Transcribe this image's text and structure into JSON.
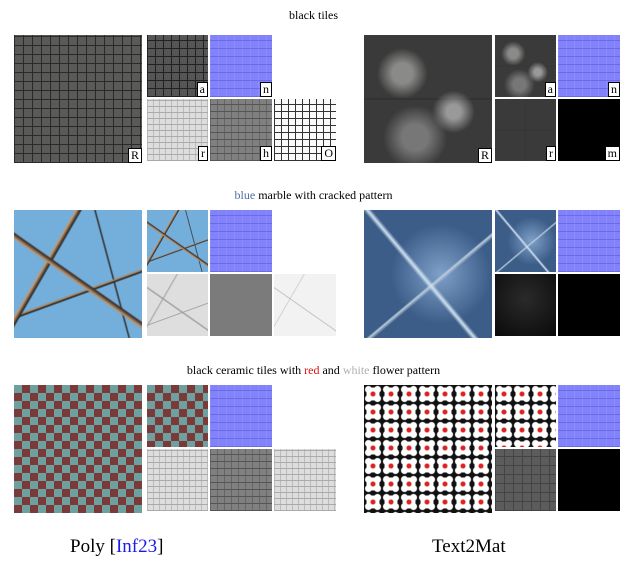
{
  "rows": [
    {
      "caption": [
        {
          "text": "black tiles"
        }
      ],
      "poly_labels": [
        "a",
        "n",
        "r",
        "h",
        "O"
      ],
      "poly_main_label": "R",
      "text2mat_labels": [
        "a",
        "n",
        "r",
        "m"
      ],
      "text2mat_main_label": "R"
    },
    {
      "caption": [
        {
          "text": "blue",
          "color": "#4a6fa5"
        },
        {
          "text": " marble with cracked pattern"
        }
      ]
    },
    {
      "caption": [
        {
          "text": "black ceramic tiles with "
        },
        {
          "text": "red",
          "color": "#e01010"
        },
        {
          "text": " and "
        },
        {
          "text": "white",
          "color": "#b0b0b0"
        },
        {
          "text": " flower pattern"
        }
      ]
    }
  ],
  "footer": {
    "poly": [
      {
        "text": "Poly ["
      },
      {
        "text": "Inf23",
        "color": "#1a1aee"
      },
      {
        "text": "]"
      }
    ],
    "text2mat": "Text2Mat"
  }
}
